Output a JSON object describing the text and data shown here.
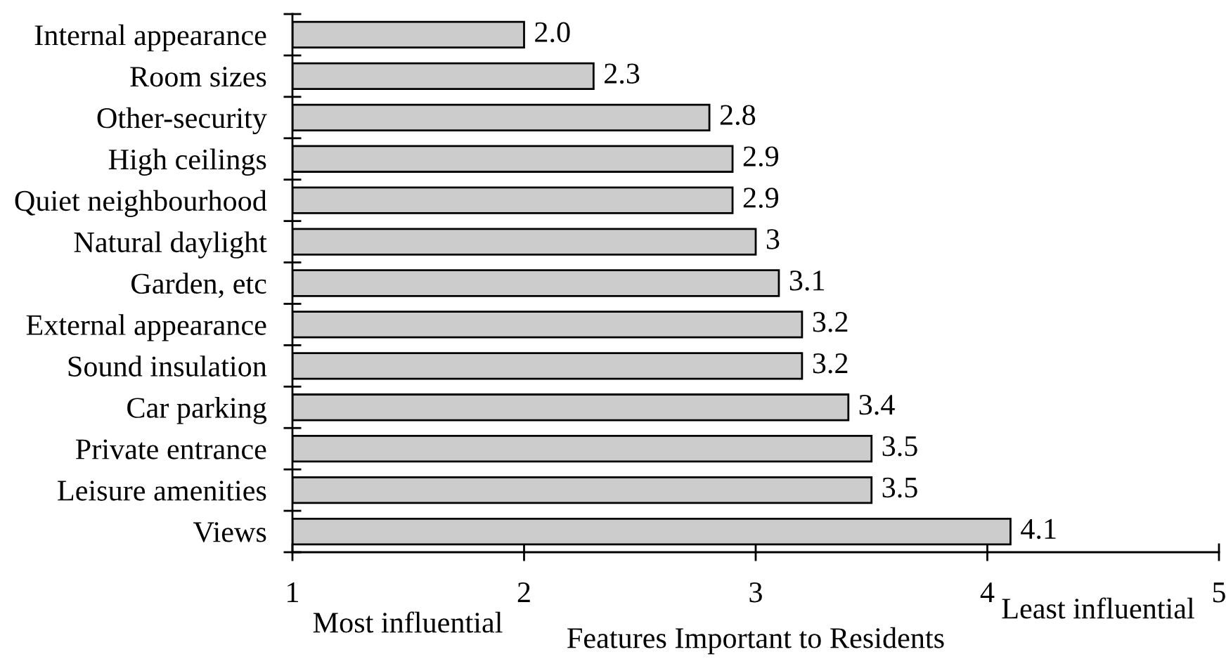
{
  "chart_data": {
    "type": "bar",
    "orientation": "horizontal",
    "xlabel": "Features Important to Residents",
    "categories": [
      "Internal appearance",
      "Room sizes",
      "Other-security",
      "High ceilings",
      "Quiet neighbourhood",
      "Natural daylight",
      "Garden, etc",
      "External appearance",
      "Sound insulation",
      "Car parking",
      "Private entrance",
      "Leisure amenities",
      "Views"
    ],
    "values": [
      2.0,
      2.3,
      2.8,
      2.9,
      2.9,
      3,
      3.1,
      3.2,
      3.2,
      3.4,
      3.5,
      3.5,
      4.1
    ],
    "value_labels": [
      "2.0",
      "2.3",
      "2.8",
      "2.9",
      "2.9",
      "3",
      "3.1",
      "3.2",
      "3.2",
      "3.4",
      "3.5",
      "3.5",
      "4.1"
    ],
    "color": "#cccccc",
    "xlim": [
      1,
      5
    ],
    "xticks": [
      1,
      2,
      3,
      4,
      5
    ],
    "annotations": [
      "Most influential",
      "Least influential"
    ]
  }
}
